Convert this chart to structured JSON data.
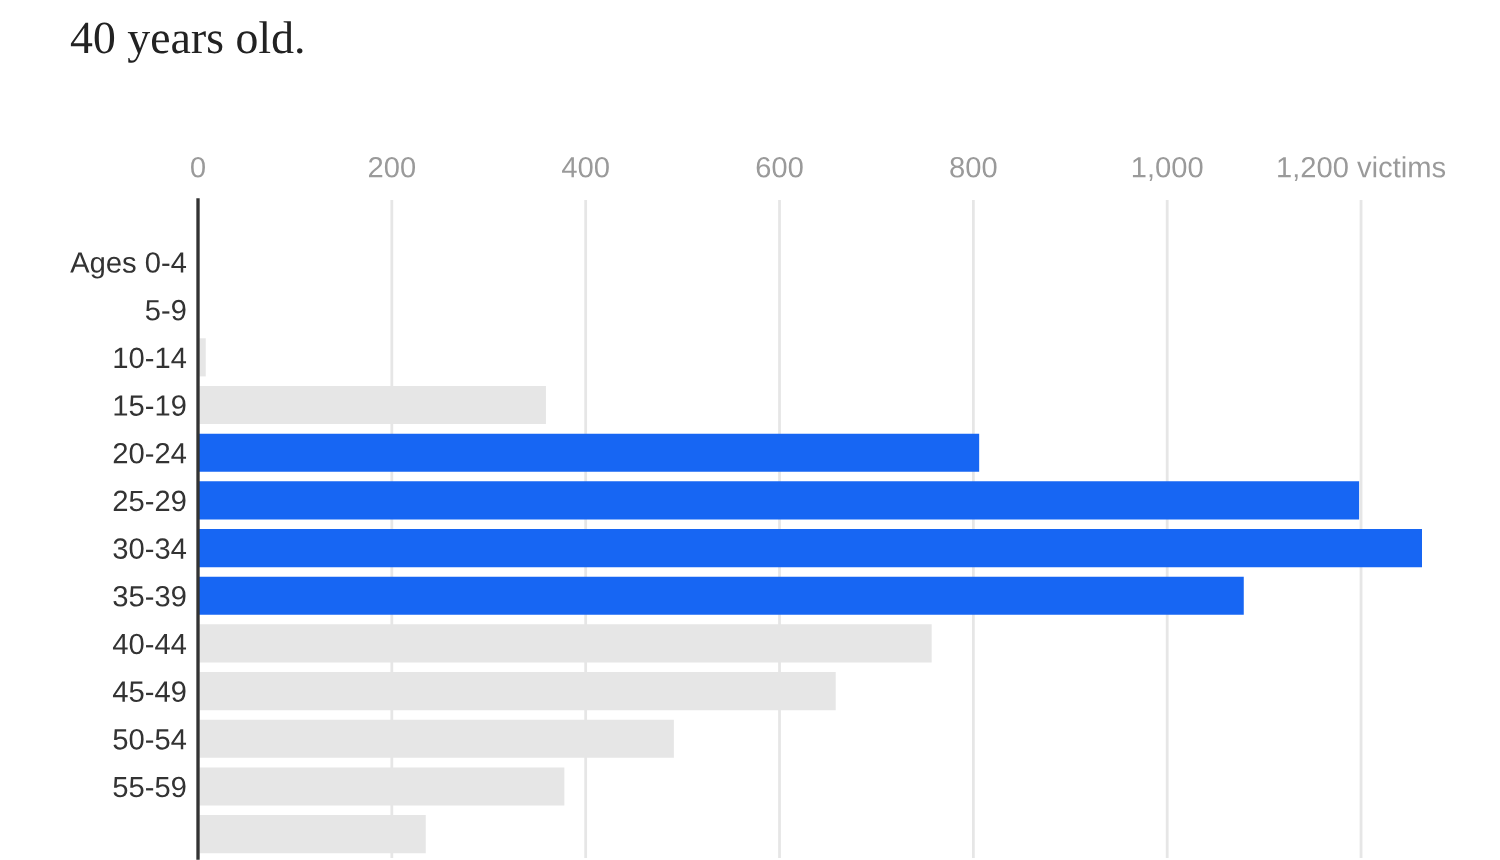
{
  "chart_data": {
    "type": "bar",
    "orientation": "horizontal",
    "title": "40 years old.",
    "categories": [
      "Ages 0-4",
      "5-9",
      "10-14",
      "15-19",
      "20-24",
      "25-29",
      "30-34",
      "35-39",
      "40-44",
      "45-49",
      "50-54",
      "55-59",
      null
    ],
    "values": [
      0,
      0,
      8,
      359,
      806,
      1198,
      1263,
      1079,
      757,
      658,
      491,
      378,
      235
    ],
    "colors": [
      "#e6e6e6",
      "#e6e6e6",
      "#e6e6e6",
      "#e6e6e6",
      "#1766f3",
      "#1766f3",
      "#1766f3",
      "#1766f3",
      "#e6e6e6",
      "#e6e6e6",
      "#e6e6e6",
      "#e6e6e6",
      "#e6e6e6"
    ],
    "xlim": [
      0,
      1263
    ],
    "xticks": [
      0,
      200,
      400,
      600,
      800,
      {
        "value": 1000,
        "label": "1,000"
      },
      {
        "value": 1200,
        "label": "1,200 victims"
      }
    ],
    "grid": "x"
  }
}
